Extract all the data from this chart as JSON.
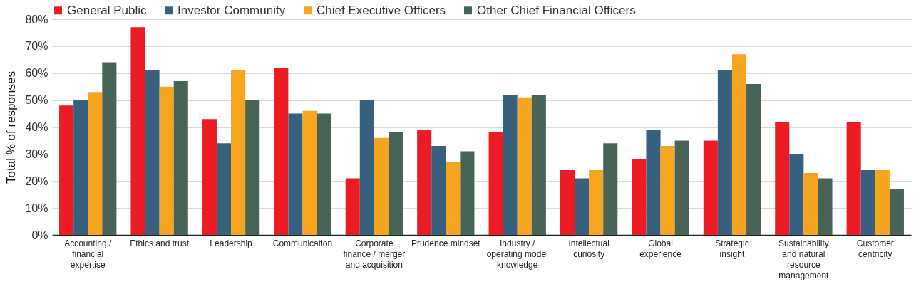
{
  "chart_data": {
    "type": "bar",
    "ylabel": "Total % of responses",
    "categories": [
      "Accounting / financial expertise",
      "Ethics and trust",
      "Leadership",
      "Communication",
      "Corporate finance / merger and acquisition",
      "Prudence mindset",
      "Industry / operating model knowledge",
      "Intellectual curiosity",
      "Global experience",
      "Strategic insight",
      "Sustainability and natural resource management",
      "Customer centricity"
    ],
    "series": [
      {
        "name": "General Public",
        "color": "#ed1c24",
        "values": [
          48,
          77,
          43,
          62,
          21,
          39,
          38,
          24,
          28,
          35,
          42,
          42
        ]
      },
      {
        "name": "Investor Community",
        "color": "#36607e",
        "values": [
          50,
          61,
          34,
          45,
          50,
          33,
          52,
          21,
          39,
          61,
          30,
          24
        ]
      },
      {
        "name": "Chief Executive Officers",
        "color": "#f7a51e",
        "values": [
          53,
          55,
          61,
          46,
          36,
          27,
          51,
          24,
          33,
          67,
          23,
          24
        ]
      },
      {
        "name": "Other Chief Financial Officers",
        "color": "#476456",
        "values": [
          64,
          57,
          50,
          45,
          38,
          31,
          52,
          34,
          35,
          56,
          21,
          17
        ]
      }
    ],
    "ylim": [
      0,
      80
    ],
    "yticks": [
      {
        "value": 0,
        "label": "0%"
      },
      {
        "value": 10,
        "label": "10%"
      },
      {
        "value": 20,
        "label": "20%"
      },
      {
        "value": 30,
        "label": "30%"
      },
      {
        "value": 40,
        "label": "40%"
      },
      {
        "value": 50,
        "label": "50%"
      },
      {
        "value": 60,
        "label": "60%"
      },
      {
        "value": 70,
        "label": "70%"
      },
      {
        "value": 80,
        "label": "80%"
      }
    ],
    "grid": "y",
    "legend": "top"
  }
}
